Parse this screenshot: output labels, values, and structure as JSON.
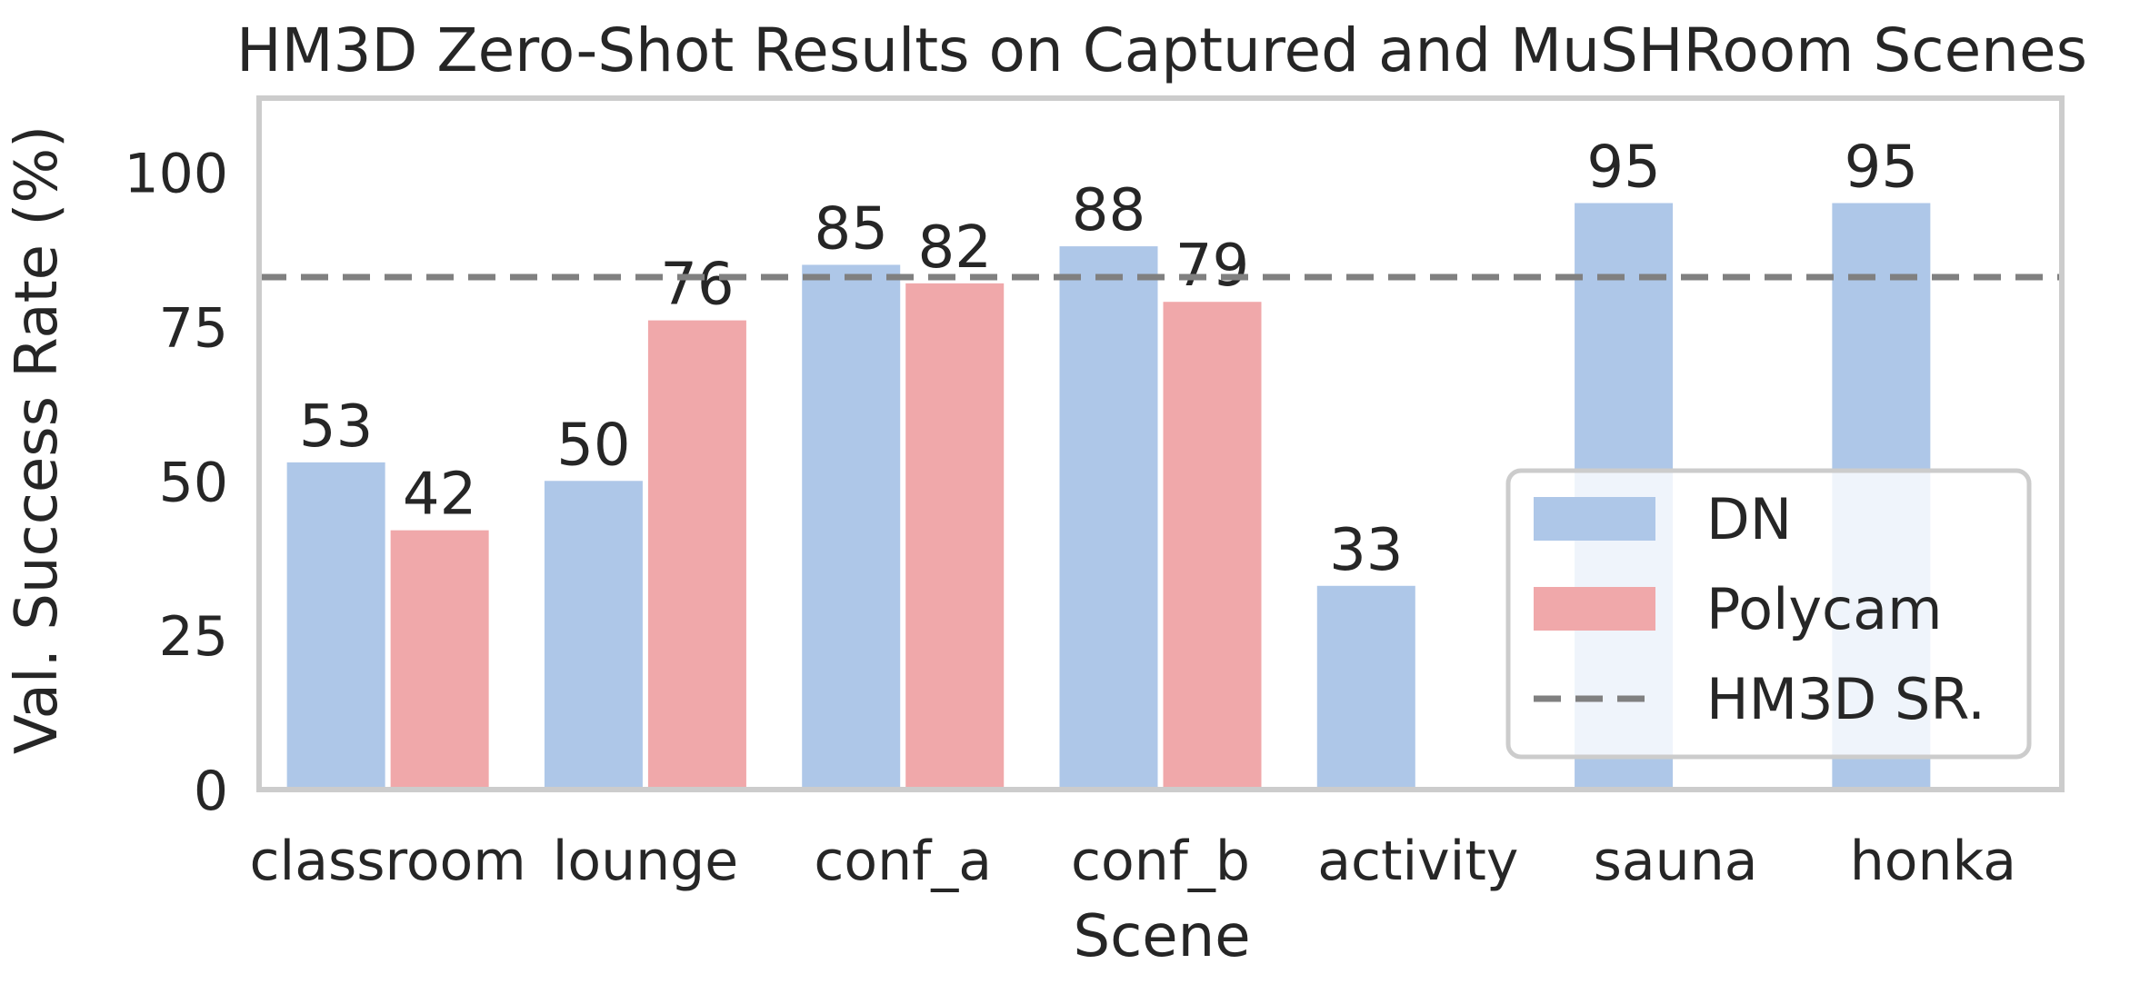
{
  "chart_data": {
    "type": "bar",
    "title": "HM3D Zero-Shot Results on Captured and MuSHRoom Scenes",
    "xlabel": "Scene",
    "ylabel": "Val. Success Rate (%)",
    "categories": [
      "classroom",
      "lounge",
      "conf_a",
      "conf_b",
      "activity",
      "sauna",
      "honka"
    ],
    "series": [
      {
        "name": "DN",
        "color": "#aec7e8",
        "values": [
          53,
          50,
          85,
          88,
          33,
          95,
          95
        ],
        "labels": [
          "53",
          "50",
          "85",
          "88",
          "33",
          "95",
          "95"
        ]
      },
      {
        "name": "Polycam",
        "color": "#f0a8aa",
        "values": [
          42,
          76,
          82,
          79,
          null,
          null,
          null
        ],
        "labels": [
          "42",
          "76",
          "82",
          "79",
          null,
          null,
          null
        ]
      }
    ],
    "reference_line": {
      "name": "HM3D SR.",
      "value": 83,
      "color": "#808080",
      "style": "dashed"
    },
    "ylim": [
      0,
      112
    ],
    "yticks": [
      "0",
      "25",
      "50",
      "75",
      "100"
    ],
    "ytick_values": [
      0,
      25,
      50,
      75,
      100
    ],
    "grid": false,
    "legend": {
      "position": "lower-right",
      "entries": [
        "DN",
        "Polycam",
        "HM3D SR."
      ]
    },
    "frame_color": "#cccccc"
  }
}
